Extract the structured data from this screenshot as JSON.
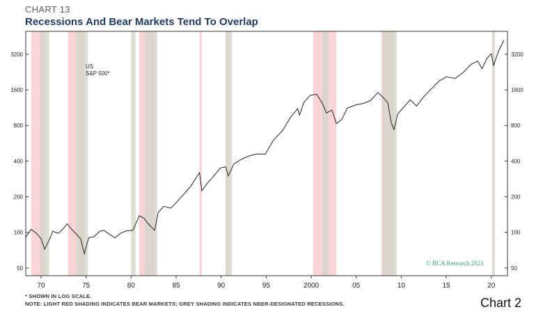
{
  "header": {
    "chart_number": "CHART 13",
    "title": "Recessions And Bear Markets Tend To Overlap"
  },
  "footnotes": {
    "note1": "* SHOWN IN LOG SCALE.",
    "note2": "NOTE: LIGHT RED SHADING INDICATES BEAR MARKETS; GREY SHADING INDICATES NBER-DESIGNATED RECESSIONS."
  },
  "page_label": "Chart 2",
  "credit": "© BCA Research 2021",
  "colors": {
    "bear": "#f9d5d7",
    "recession": "#d4d4c8",
    "line": "#222222",
    "title": "#1f3a5f",
    "credit": "#2e9a85"
  },
  "chart_data": {
    "type": "line",
    "title": "Recessions And Bear Markets Tend To Overlap",
    "log_scale": true,
    "ylim": [
      43,
      5000
    ],
    "xlim": [
      1968.3,
      2021.8
    ],
    "y_ticks": [
      50,
      100,
      200,
      400,
      800,
      1600,
      3200
    ],
    "x_ticks": [
      {
        "value": 1970,
        "label": "70"
      },
      {
        "value": 1975,
        "label": "75"
      },
      {
        "value": 1980,
        "label": "80"
      },
      {
        "value": 1985,
        "label": "85"
      },
      {
        "value": 1990,
        "label": "90"
      },
      {
        "value": 1995,
        "label": "95"
      },
      {
        "value": 2000,
        "label": "2000"
      },
      {
        "value": 2005,
        "label": "05"
      },
      {
        "value": 2010,
        "label": "10"
      },
      {
        "value": 2015,
        "label": "15"
      },
      {
        "value": 2020,
        "label": "20"
      }
    ],
    "series": [
      {
        "name": "US S&P 500*",
        "label_lines": [
          "US",
          "S&P 500*"
        ],
        "points": [
          [
            1968.3,
            91
          ],
          [
            1968.9,
            106
          ],
          [
            1969.5,
            98
          ],
          [
            1970.0,
            88
          ],
          [
            1970.4,
            72
          ],
          [
            1970.9,
            86
          ],
          [
            1971.3,
            102
          ],
          [
            1971.9,
            98
          ],
          [
            1972.5,
            108
          ],
          [
            1972.9,
            118
          ],
          [
            1973.4,
            106
          ],
          [
            1973.9,
            97
          ],
          [
            1974.4,
            88
          ],
          [
            1974.8,
            66
          ],
          [
            1975.3,
            90
          ],
          [
            1975.9,
            92
          ],
          [
            1976.5,
            102
          ],
          [
            1977.0,
            104
          ],
          [
            1977.6,
            96
          ],
          [
            1978.2,
            90
          ],
          [
            1978.8,
            98
          ],
          [
            1979.5,
            103
          ],
          [
            1980.2,
            104
          ],
          [
            1980.9,
            138
          ],
          [
            1981.4,
            132
          ],
          [
            1982.0,
            116
          ],
          [
            1982.6,
            104
          ],
          [
            1983.0,
            146
          ],
          [
            1983.6,
            166
          ],
          [
            1984.4,
            160
          ],
          [
            1985.0,
            178
          ],
          [
            1985.9,
            212
          ],
          [
            1986.6,
            244
          ],
          [
            1987.6,
            320
          ],
          [
            1987.85,
            225
          ],
          [
            1988.5,
            262
          ],
          [
            1989.2,
            300
          ],
          [
            1989.9,
            350
          ],
          [
            1990.5,
            358
          ],
          [
            1990.8,
            300
          ],
          [
            1991.4,
            378
          ],
          [
            1992.2,
            412
          ],
          [
            1993.0,
            440
          ],
          [
            1994.0,
            460
          ],
          [
            1994.9,
            458
          ],
          [
            1995.8,
            600
          ],
          [
            1996.8,
            720
          ],
          [
            1997.7,
            940
          ],
          [
            1998.5,
            1110
          ],
          [
            1998.7,
            980
          ],
          [
            1999.2,
            1260
          ],
          [
            1999.9,
            1440
          ],
          [
            2000.6,
            1470
          ],
          [
            2001.2,
            1250
          ],
          [
            2001.7,
            1020
          ],
          [
            2002.3,
            1080
          ],
          [
            2002.8,
            830
          ],
          [
            2003.4,
            900
          ],
          [
            2004.0,
            1120
          ],
          [
            2004.9,
            1190
          ],
          [
            2005.8,
            1230
          ],
          [
            2006.6,
            1300
          ],
          [
            2007.4,
            1520
          ],
          [
            2007.9,
            1400
          ],
          [
            2008.5,
            1250
          ],
          [
            2008.9,
            840
          ],
          [
            2009.2,
            740
          ],
          [
            2009.6,
            1000
          ],
          [
            2010.3,
            1150
          ],
          [
            2011.0,
            1320
          ],
          [
            2011.7,
            1170
          ],
          [
            2012.5,
            1400
          ],
          [
            2013.3,
            1620
          ],
          [
            2014.2,
            1900
          ],
          [
            2015.0,
            2060
          ],
          [
            2016.0,
            2000
          ],
          [
            2016.9,
            2250
          ],
          [
            2017.8,
            2650
          ],
          [
            2018.5,
            2800
          ],
          [
            2018.98,
            2420
          ],
          [
            2019.5,
            2950
          ],
          [
            2020.0,
            3230
          ],
          [
            2020.25,
            2580
          ],
          [
            2020.8,
            3400
          ],
          [
            2021.4,
            4200
          ]
        ]
      }
    ],
    "bear_markets": [
      [
        1968.9,
        1970.4
      ],
      [
        1973.0,
        1974.8
      ],
      [
        1980.9,
        1982.6
      ],
      [
        1987.6,
        1987.85
      ],
      [
        1990.5,
        1990.8
      ],
      [
        2000.2,
        2002.8
      ],
      [
        2007.8,
        2009.2
      ],
      [
        2020.1,
        2020.25
      ]
    ],
    "recessions": [
      [
        1969.9,
        1970.9
      ],
      [
        1973.9,
        1975.2
      ],
      [
        1980.0,
        1980.5
      ],
      [
        1981.5,
        1982.9
      ],
      [
        1990.5,
        1991.2
      ],
      [
        2001.2,
        2001.9
      ],
      [
        2007.9,
        2009.5
      ],
      [
        2020.1,
        2020.4
      ]
    ]
  }
}
